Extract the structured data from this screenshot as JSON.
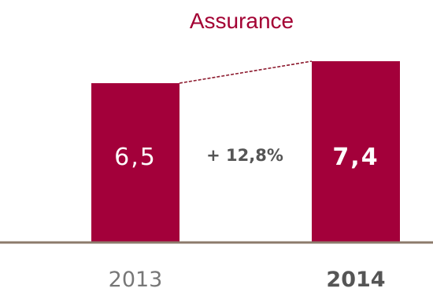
{
  "chart_data": {
    "type": "bar",
    "title": "Assurance",
    "categories": [
      "2013",
      "2014"
    ],
    "values": [
      6.5,
      7.4
    ],
    "value_labels": [
      "6,5",
      "7,4"
    ],
    "growth_label": "+ 12,8%",
    "ylim": [
      0,
      7.4
    ],
    "grid": false,
    "legend": "none"
  },
  "colors": {
    "title": "#a30033",
    "bar": "#a3003a",
    "bar_label_first": "#ffffff",
    "bar_label_last": "#ffffff",
    "growth": "#555555",
    "category_first": "#777777",
    "category_last": "#555555",
    "baseline": "#8c7a6b",
    "connector": "#8c1a2e"
  }
}
